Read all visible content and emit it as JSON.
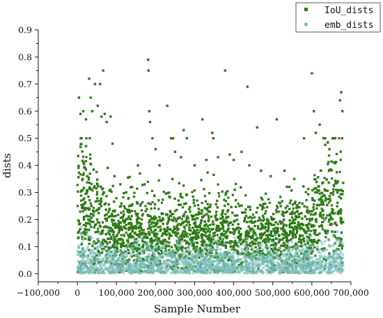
{
  "chart_data": {
    "type": "scatter",
    "xlabel": "Sample Number",
    "ylabel": "dists",
    "xlim": [
      -100000,
      700000
    ],
    "ylim": [
      -0.03,
      0.9
    ],
    "x_ticks": [
      -100000,
      0,
      100000,
      200000,
      300000,
      400000,
      500000,
      600000,
      700000
    ],
    "x_tick_labels": [
      "−100,000",
      "0",
      "100,000",
      "200,000",
      "300,000",
      "400,000",
      "500,000",
      "600,000",
      "700,000"
    ],
    "y_ticks": [
      0.0,
      0.1,
      0.2,
      0.3,
      0.4,
      0.5,
      0.6,
      0.7,
      0.8,
      0.9
    ],
    "y_tick_labels": [
      "0.0",
      "0.1",
      "0.2",
      "0.3",
      "0.4",
      "0.5",
      "0.6",
      "0.7",
      "0.8",
      "0.9"
    ],
    "legend_position": "top-right",
    "series": [
      {
        "name": "IoU_dists",
        "color": "#2d7a14",
        "marker": "square",
        "x_range": [
          0,
          680000
        ],
        "points": [
          [
            4000,
            0.65
          ],
          [
            8000,
            0.59
          ],
          [
            15000,
            0.6
          ],
          [
            22000,
            0.57
          ],
          [
            30000,
            0.72
          ],
          [
            34000,
            0.65
          ],
          [
            38000,
            0.6
          ],
          [
            45000,
            0.7
          ],
          [
            52000,
            0.62
          ],
          [
            58000,
            0.7
          ],
          [
            62000,
            0.58
          ],
          [
            66000,
            0.75
          ],
          [
            70000,
            0.59
          ],
          [
            75000,
            0.56
          ],
          [
            85000,
            0.58
          ],
          [
            90000,
            0.48
          ],
          [
            95000,
            0.36
          ],
          [
            110000,
            0.33
          ],
          [
            125000,
            0.3
          ],
          [
            140000,
            0.32
          ],
          [
            160000,
            0.37
          ],
          [
            172000,
            0.33
          ],
          [
            181000,
            0.79
          ],
          [
            182000,
            0.75
          ],
          [
            184000,
            0.6
          ],
          [
            186000,
            0.56
          ],
          [
            192000,
            0.5
          ],
          [
            200000,
            0.46
          ],
          [
            210000,
            0.4
          ],
          [
            230000,
            0.62
          ],
          [
            240000,
            0.5
          ],
          [
            245000,
            0.5
          ],
          [
            250000,
            0.45
          ],
          [
            265000,
            0.43
          ],
          [
            272000,
            0.53
          ],
          [
            280000,
            0.5
          ],
          [
            300000,
            0.4
          ],
          [
            320000,
            0.57
          ],
          [
            330000,
            0.42
          ],
          [
            345000,
            0.52
          ],
          [
            348000,
            0.5
          ],
          [
            360000,
            0.43
          ],
          [
            378000,
            0.75
          ],
          [
            390000,
            0.44
          ],
          [
            400000,
            0.42
          ],
          [
            420000,
            0.45
          ],
          [
            435000,
            0.69
          ],
          [
            440000,
            0.4
          ],
          [
            460000,
            0.54
          ],
          [
            470000,
            0.38
          ],
          [
            495000,
            0.36
          ],
          [
            510000,
            0.57
          ],
          [
            530000,
            0.38
          ],
          [
            555000,
            0.35
          ],
          [
            580000,
            0.5
          ],
          [
            600000,
            0.74
          ],
          [
            605000,
            0.6
          ],
          [
            610000,
            0.52
          ],
          [
            620000,
            0.55
          ],
          [
            630000,
            0.5
          ],
          [
            645000,
            0.46
          ],
          [
            660000,
            0.5
          ],
          [
            672000,
            0.64
          ],
          [
            675000,
            0.67
          ],
          [
            678000,
            0.6
          ]
        ]
      },
      {
        "name": "emb_dists",
        "color": "#79bdbb",
        "marker": "circle",
        "x_range": [
          0,
          680000
        ]
      }
    ]
  }
}
